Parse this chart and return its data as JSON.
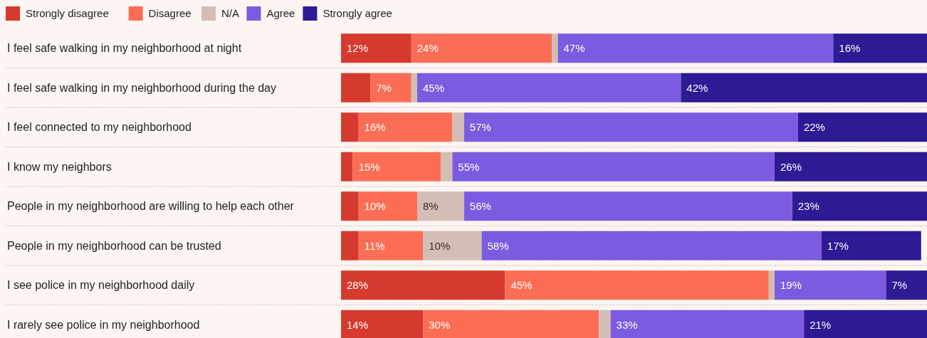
{
  "chart_data": {
    "type": "bar",
    "orientation": "horizontal",
    "stacked": true,
    "legend": "top left",
    "grid": "y",
    "xlim": [
      0,
      100
    ],
    "tick_labels": "y",
    "categories": [
      "I feel safe walking in my neighborhood at night",
      "I feel safe walking in my neighborhood during the day",
      "I feel connected to my neighborhood",
      "I know my neighbors",
      "People in my neighborhood are willing to help each other",
      "People in my neighborhood can be trusted",
      "I see police in my neighborhood daily",
      "I rarely see police in my neighborhood"
    ],
    "series": [
      {
        "name": "Strongly disagree",
        "color": "#d63a2f",
        "values": [
          12,
          5,
          3,
          2,
          3,
          3,
          28,
          14
        ],
        "value_labels": [
          "12%",
          null,
          null,
          null,
          null,
          null,
          "28%",
          "14%"
        ]
      },
      {
        "name": "Disagree",
        "color": "#fb6e55",
        "values": [
          24,
          7,
          16,
          15,
          10,
          11,
          45,
          30
        ],
        "value_labels": [
          "24%",
          "7%",
          "16%",
          "15%",
          "10%",
          "11%",
          "45%",
          "30%"
        ]
      },
      {
        "name": "N/A",
        "color": "#d3bdb5",
        "values": [
          1,
          1,
          2,
          2,
          8,
          10,
          1,
          2
        ],
        "value_labels": [
          null,
          null,
          null,
          null,
          "8%",
          "10%",
          null,
          null
        ]
      },
      {
        "name": "Agree",
        "color": "#7b5ce0",
        "values": [
          47,
          45,
          57,
          55,
          56,
          58,
          19,
          33
        ],
        "value_labels": [
          "47%",
          "45%",
          "57%",
          "55%",
          "56%",
          "58%",
          "19%",
          "33%"
        ]
      },
      {
        "name": "Strongly agree",
        "color": "#2e1a94",
        "values": [
          16,
          42,
          22,
          26,
          23,
          17,
          7,
          21
        ],
        "value_labels": [
          "16%",
          "42%",
          "22%",
          "26%",
          "23%",
          "17%",
          "7%",
          "21%"
        ]
      }
    ]
  }
}
